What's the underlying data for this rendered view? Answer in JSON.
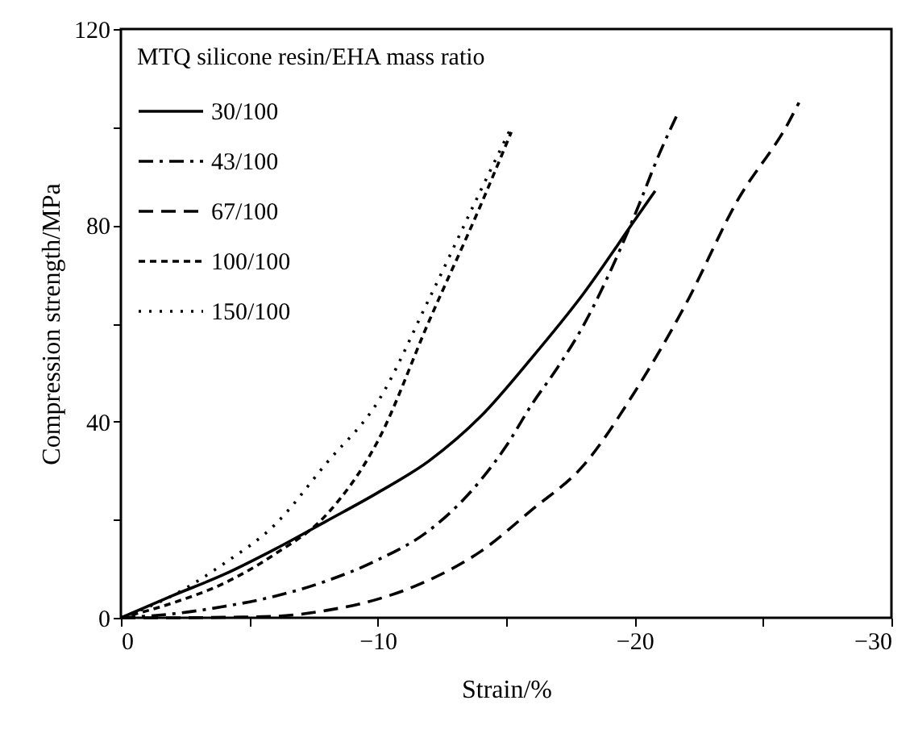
{
  "chart_data": {
    "type": "line",
    "xlabel": "Strain/%",
    "ylabel": "Compression strength/MPa",
    "legend_title": "MTQ silicone resin/EHA mass ratio",
    "legend": "top left",
    "xlim": [
      0,
      -30
    ],
    "xticks": [
      0,
      {
        "value": -5,
        "label": null
      },
      -10,
      {
        "value": -15,
        "label": null
      },
      -20,
      {
        "value": -25,
        "label": null
      },
      -30
    ],
    "ylim": [
      0,
      120
    ],
    "yticks": [
      0,
      {
        "value": 20,
        "label": null
      },
      40,
      {
        "value": 60,
        "label": null
      },
      80,
      {
        "value": 100,
        "label": null
      },
      120
    ],
    "series": [
      {
        "name": "30/100",
        "color": "#000000",
        "line_style": "solid",
        "x": [
          0,
          -2,
          -4,
          -6,
          -8,
          -10,
          -12,
          -14,
          -16,
          -18,
          -20,
          -20.8
        ],
        "values": [
          0,
          4.5,
          8.8,
          14,
          19.7,
          25.5,
          32,
          41,
          53,
          66,
          81,
          87
        ]
      },
      {
        "name": "43/100",
        "color": "#000000",
        "line_style": "dashdot",
        "x": [
          0,
          -2,
          -4,
          -6,
          -8,
          -10,
          -12,
          -14,
          -15,
          -16,
          -17,
          -18,
          -19,
          -20,
          -21,
          -21.7
        ],
        "values": [
          0,
          0.8,
          2.3,
          4.4,
          7.5,
          11.8,
          17.8,
          28,
          35,
          43.5,
          51,
          59.5,
          70,
          82,
          95,
          103
        ]
      },
      {
        "name": "67/100",
        "color": "#000000",
        "line_style": "dashed",
        "x": [
          0,
          -2,
          -4,
          -6,
          -8,
          -10,
          -12,
          -14,
          -16,
          -18,
          -20,
          -22,
          -24,
          -26,
          -26.4
        ],
        "values": [
          0,
          0,
          0.1,
          0.3,
          1.5,
          3.8,
          7.7,
          13.5,
          22,
          31,
          46,
          64,
          85,
          101,
          105
        ]
      },
      {
        "name": "100/100",
        "color": "#000000",
        "line_style": "shortdash",
        "x": [
          0,
          -2,
          -4,
          -6,
          -8,
          -10,
          -12,
          -14,
          -15.2
        ],
        "values": [
          0,
          3,
          7,
          13,
          21,
          36,
          60.5,
          84,
          99
        ]
      },
      {
        "name": "150/100",
        "color": "#000000",
        "line_style": "dotted",
        "x": [
          0,
          -2,
          -4,
          -6,
          -8,
          -10,
          -12,
          -14,
          -15.2
        ],
        "values": [
          0,
          4.5,
          11,
          19,
          31.5,
          44,
          65,
          87,
          100
        ]
      }
    ]
  }
}
